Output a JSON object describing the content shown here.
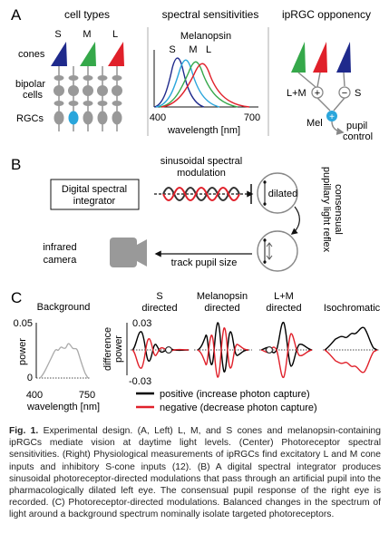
{
  "panelA": {
    "label": "A",
    "col1_title": "cell types",
    "col2_title": "spectral sensitivities",
    "col3_title": "ipRGC opponency",
    "cone_letters": [
      "S",
      "M",
      "L"
    ],
    "row_labels": {
      "cones": "cones",
      "bipolar_line1": "bipolar",
      "bipolar_line2": "cells",
      "rgcs": "RGCs"
    },
    "melanopsin_label": "Melanopsin",
    "curve_letters": [
      "S",
      "M",
      "L"
    ],
    "x_tick_min": "400",
    "x_tick_max": "700",
    "x_label": "wavelength [nm]",
    "opponency": {
      "lm": "L+M",
      "s": "S",
      "plus": "+",
      "minus": "−",
      "mel": "Mel",
      "output_line1": "pupil",
      "output_line2": "control"
    },
    "colors": {
      "s": "#1f2a8c",
      "m": "#35a84a",
      "l": "#e0202a",
      "mel": "#2aa6dc",
      "grey": "#9a9a9a"
    }
  },
  "panelB": {
    "label": "B",
    "integrator_line1": "Digital spectral",
    "integrator_line2": "integrator",
    "mod_line1": "sinusoidal spectral",
    "mod_line2": "modulation",
    "dilated": "dilated",
    "reflex_line1": "consensual",
    "reflex_line2": "pupillary light reflex",
    "camera_line1": "infrared",
    "camera_line2": "camera",
    "track": "track pupil size"
  },
  "panelC": {
    "label": "C",
    "background_title": "Background",
    "power_tick_top": "0.05",
    "power_tick_bottom": "0",
    "power_label": "power",
    "x_tick_min": "400",
    "x_tick_max": "750",
    "x_label": "wavelength [nm]",
    "diff_label_line1": "difference",
    "diff_label_line2": "power",
    "diff_tick_top": "0.03",
    "diff_tick_bottom": "-0.03",
    "plot_titles": [
      {
        "line1": "S",
        "line2": "directed"
      },
      {
        "line1": "Melanopsin",
        "line2": "directed"
      },
      {
        "line1": "L+M",
        "line2": "directed"
      },
      {
        "line1": "Isochromatic",
        "line2": ""
      }
    ],
    "legend": {
      "positive": "positive (increase photon capture)",
      "negative": "negative (decrease photon capture)",
      "positive_color": "#000000",
      "negative_color": "#e0202a"
    }
  },
  "caption": {
    "head": "Fig. 1.",
    "text": "Experimental design. (A, Left) L, M, and S cones and melanopsin-containing ipRGCs mediate vision at daytime light levels. (Center) Photoreceptor spectral sensitivities. (Right) Physiological measurements of ipRGCs find excitatory L and M cone inputs and inhibitory S-cone inputs (12). (B) A digital spectral integrator produces sinusoidal photoreceptor-directed modulations that pass through an artificial pupil into the pharmacologically dilated left eye. The consensual pupil response of the right eye is recorded. (C) Photoreceptor-directed modulations. Balanced changes in the spectrum of light around a background spectrum nominally isolate targeted photoreceptors."
  }
}
